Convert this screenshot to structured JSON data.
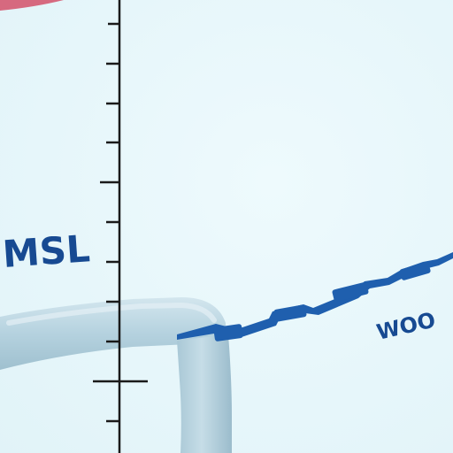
{
  "labels": {
    "left": "MSL",
    "right": "WOO"
  },
  "colors": {
    "background": "#e8f7fb",
    "axis": "#1a1a1a",
    "pipe": "#b9d6e2",
    "pipe_shadow": "#9fc2d2",
    "line": "#1f5fae",
    "text": "#174a92",
    "accent_top": "#d4506a"
  }
}
